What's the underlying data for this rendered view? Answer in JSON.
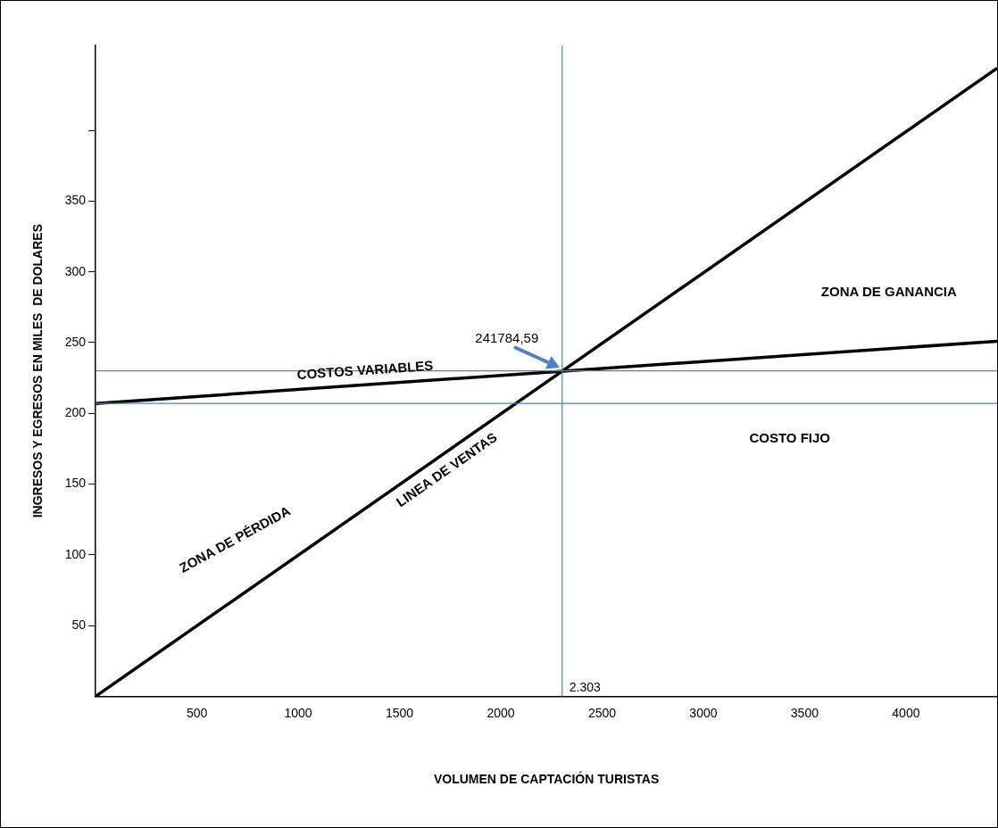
{
  "chart_data": {
    "type": "line",
    "xlabel": "VOLUMEN DE CAPTACIÓN TURISTAS",
    "ylabel": "INGRESOS Y EGRESOS EN MILES  DE DOLARES",
    "xlim": [
      0,
      4450
    ],
    "xticks": [
      500,
      1000,
      1500,
      2000,
      2500,
      3000,
      3500,
      4000
    ],
    "ylim": [
      0,
      460
    ],
    "yticks": [
      50,
      100,
      150,
      200,
      250,
      300,
      350,
      {
        "value": 400,
        "label": null
      }
    ],
    "x": [
      0,
      4450
    ],
    "grid": false,
    "legend": false,
    "marker": "none",
    "line_style": "solid",
    "series": [
      {
        "name": "LINEA DE VENTAS",
        "color": "#000000",
        "values": [
          0,
          444
        ]
      },
      {
        "name": "COSTOS VARIABLES",
        "color": "#000000",
        "values": [
          207,
          251
        ]
      }
    ],
    "ref_lines": [
      {
        "axis": "y",
        "value": 207,
        "label": "COSTO FIJO",
        "color": "#4f81bd"
      },
      {
        "axis": "y",
        "value": 230,
        "label": null,
        "color": "#4f81bd"
      },
      {
        "axis": "x",
        "value": 2303,
        "label": "2.303",
        "color": "#4f81bd"
      }
    ],
    "annotations": [
      {
        "text": "241784,59",
        "x": 2303,
        "y": 230
      },
      "ZONA DE PÉRDIDA",
      "ZONA DE GANANCIA"
    ]
  }
}
